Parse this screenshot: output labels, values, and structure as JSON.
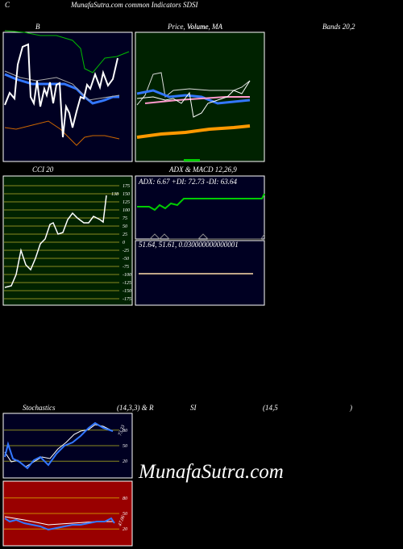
{
  "header": {
    "corner_label": "C",
    "site_title": "MunafaSutra.com   common Indicators SDSI"
  },
  "panels": {
    "bollinger": {
      "label": "B"
    },
    "price": {
      "label": "Price, Volume, MA",
      "label_overlap": "Volume",
      "bands_label": "Bands 20,2"
    },
    "cci": {
      "label": "CCI 20",
      "value_label": "138",
      "ticks": [
        175,
        150,
        125,
        100,
        75,
        50,
        25,
        0,
        -25,
        -50,
        -75,
        -100,
        -125,
        -150,
        -175
      ],
      "ylim": [
        -175,
        175
      ]
    },
    "adx": {
      "label": "ADX  & MACD 12,26,9",
      "readout": "ADX: 6.67 +DI: 72.73 -DI: 63.64"
    },
    "macd": {
      "readout": "51.64,  51.61,  0.030000000000001"
    },
    "stochastics": {
      "label": "Stochastics",
      "params": "(14,3,3) & R",
      "value_label": "73.33",
      "ticks": [
        80,
        50,
        20
      ],
      "ylim": [
        0,
        100
      ]
    },
    "rsi": {
      "label": "SI",
      "params": "(14,5",
      "close": ")",
      "value_label": "47.06",
      "ticks": [
        80,
        50,
        20
      ],
      "ylim": [
        0,
        100
      ]
    }
  },
  "watermark": "MunafaSutra.com"
}
